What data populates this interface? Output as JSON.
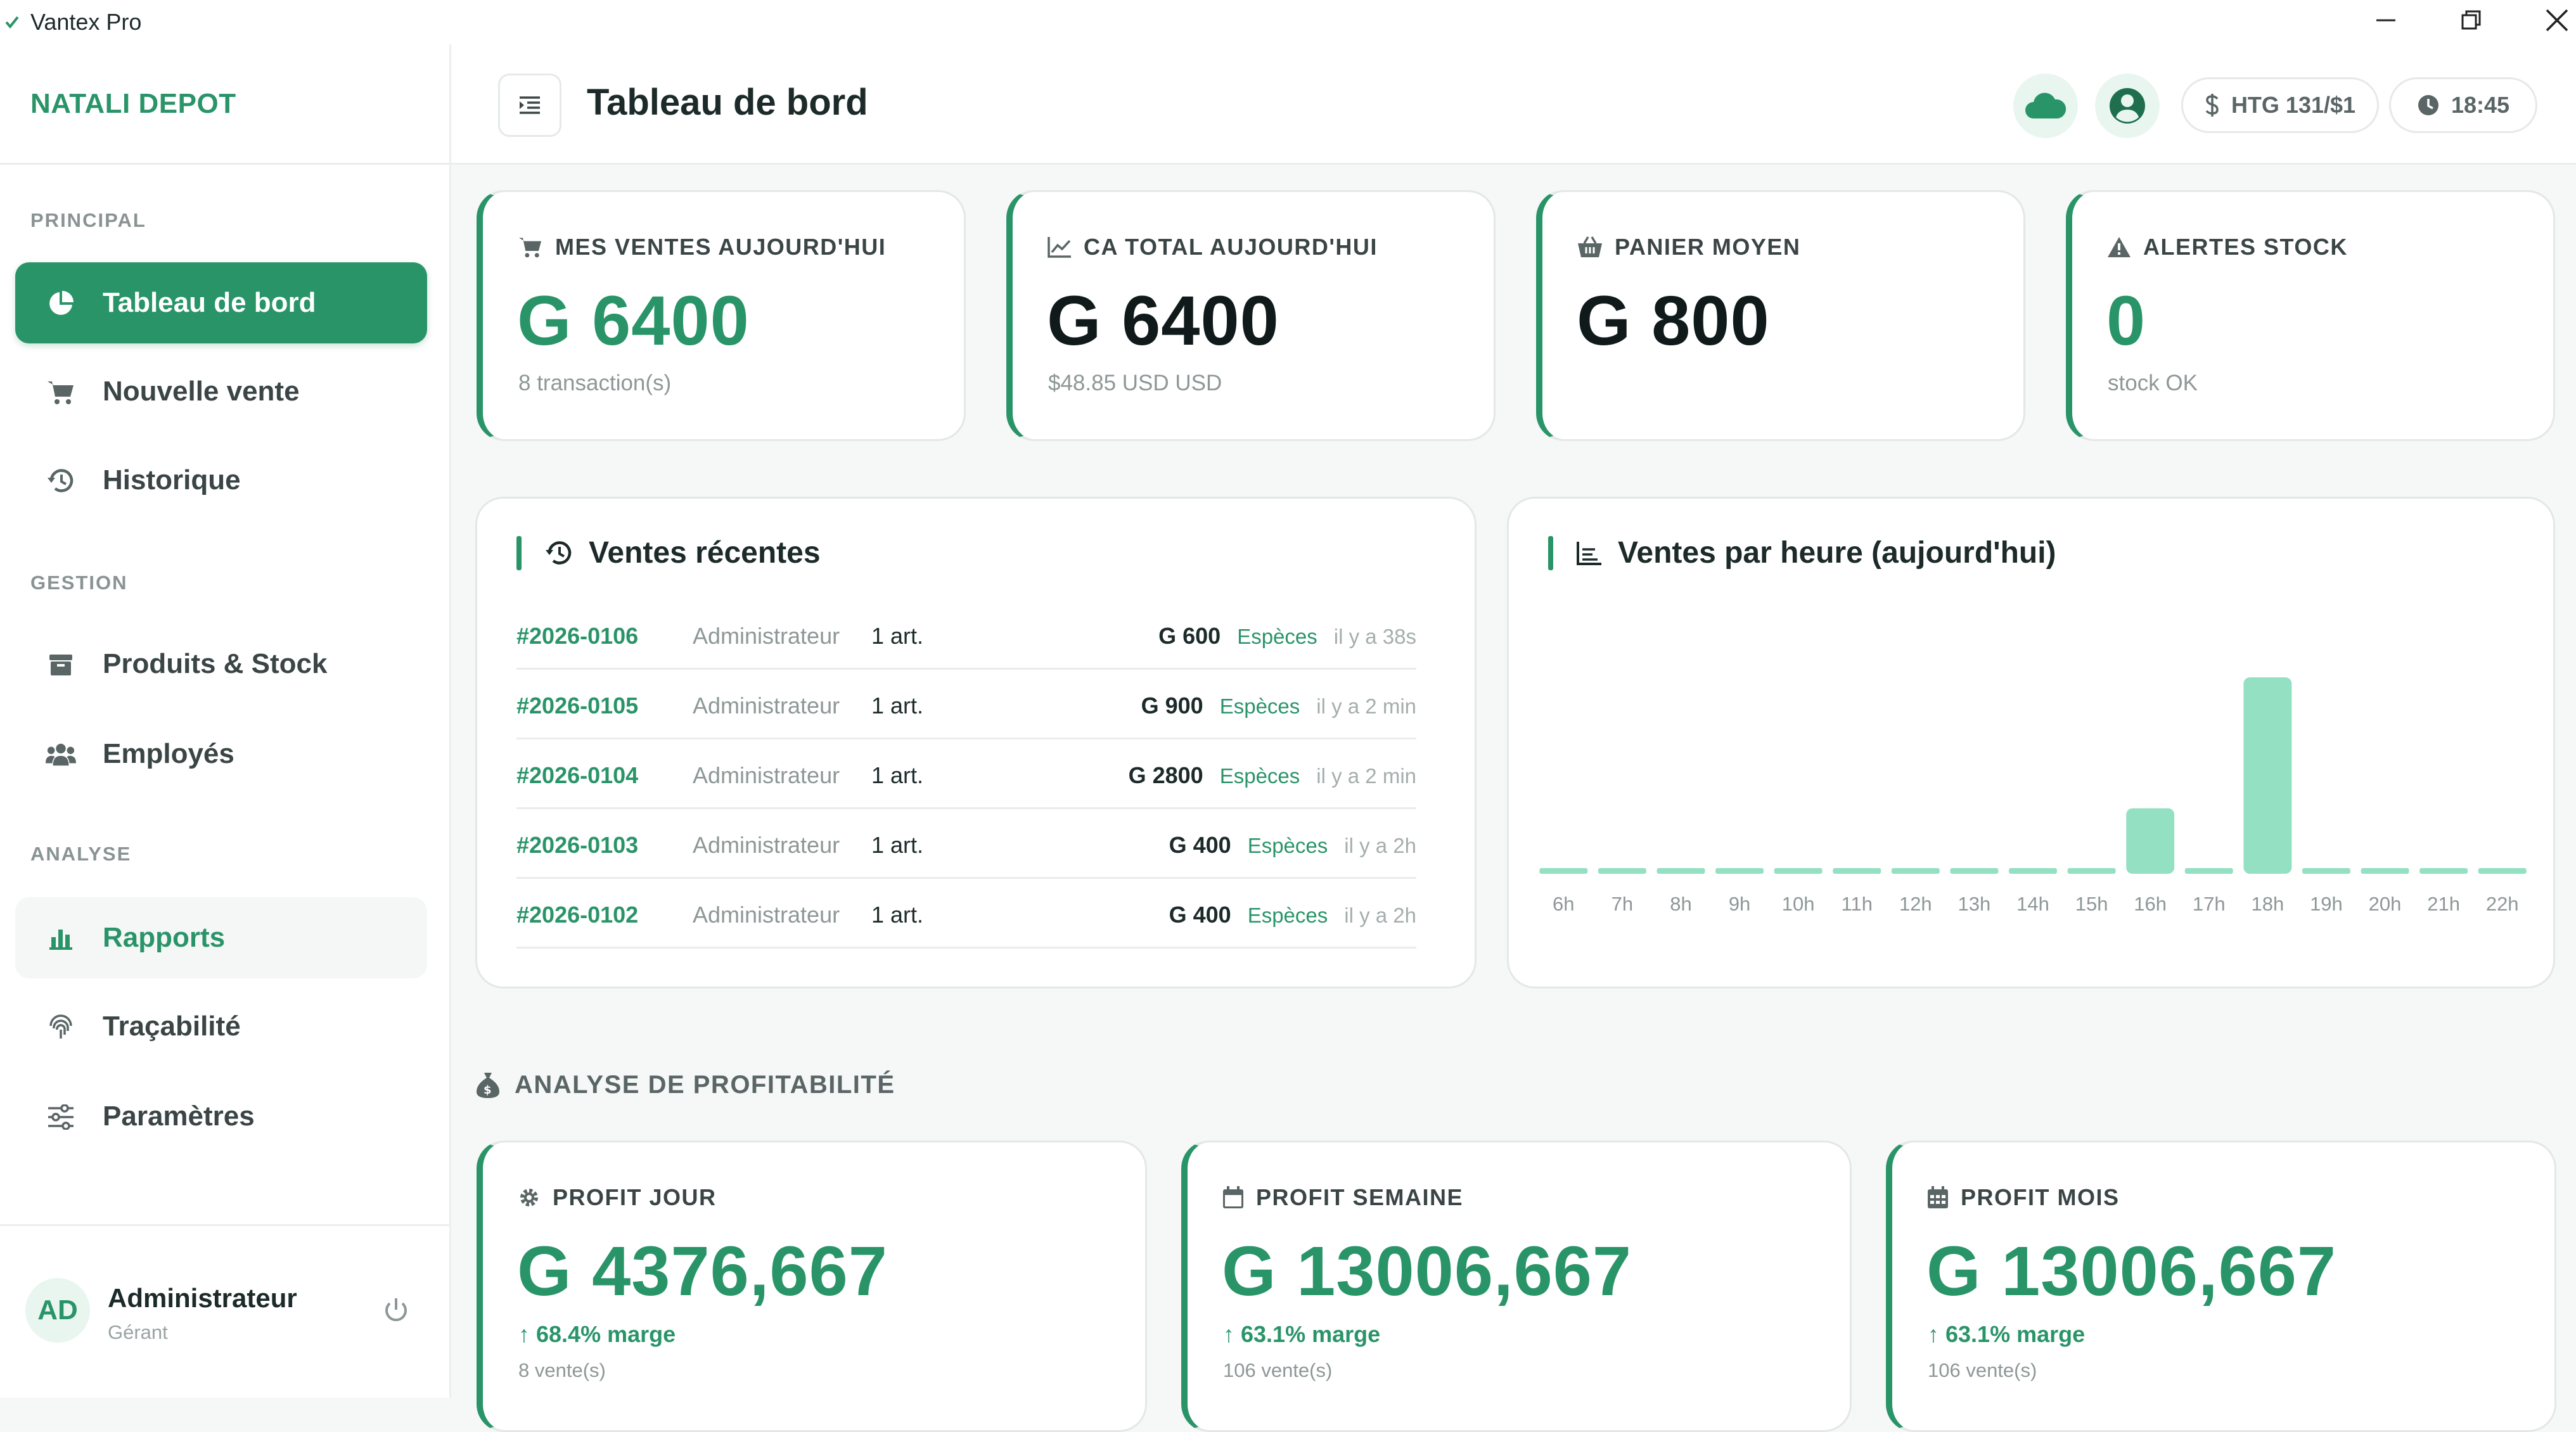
{
  "window": {
    "title": "Vantex Pro",
    "controls": [
      "minimize",
      "restore",
      "close"
    ]
  },
  "sidebar": {
    "brand": "NATALI DEPOT",
    "sections": {
      "principal": "PRINCIPAL",
      "gestion": "GESTION",
      "analyse": "ANALYSE"
    },
    "items": [
      {
        "label": "Tableau de bord",
        "icon": "pie-chart-icon",
        "state": "active"
      },
      {
        "label": "Nouvelle vente",
        "icon": "cart-icon"
      },
      {
        "label": "Historique",
        "icon": "history-icon"
      },
      {
        "label": "Produits & Stock",
        "icon": "box-icon"
      },
      {
        "label": "Employés",
        "icon": "users-icon"
      },
      {
        "label": "Rapports",
        "icon": "bar-chart-icon",
        "state": "highlighted"
      },
      {
        "label": "Traçabilité",
        "icon": "fingerprint-icon"
      },
      {
        "label": "Paramètres",
        "icon": "sliders-icon"
      }
    ],
    "user": {
      "initials": "AD",
      "name": "Administrateur",
      "role": "Gérant"
    }
  },
  "header": {
    "title": "Tableau de bord",
    "exchange_rate": "HTG 131/$1",
    "time": "18:45"
  },
  "stats": [
    {
      "label": "MES VENTES AUJOURD'HUI",
      "value": "G 6400",
      "sub": "8 transaction(s)",
      "icon": "cart-icon"
    },
    {
      "label": "CA TOTAL AUJOURD'HUI",
      "value": "G 6400",
      "sub": "$48.85 USD USD",
      "icon": "line-chart-icon"
    },
    {
      "label": "PANIER MOYEN",
      "value": "G 800",
      "sub": "",
      "icon": "basket-icon"
    },
    {
      "label": "ALERTES STOCK",
      "value": "0",
      "sub": "stock OK",
      "icon": "warning-icon"
    }
  ],
  "recent_sales": {
    "title": "Ventes récentes",
    "rows": [
      {
        "number": "#2026-0106",
        "user": "Administrateur",
        "items": "1 art.",
        "amount": "G 600",
        "payment": "Espèces",
        "ago": "il y a 38s"
      },
      {
        "number": "#2026-0105",
        "user": "Administrateur",
        "items": "1 art.",
        "amount": "G 900",
        "payment": "Espèces",
        "ago": "il y a 2 min"
      },
      {
        "number": "#2026-0104",
        "user": "Administrateur",
        "items": "1 art.",
        "amount": "G 2800",
        "payment": "Espèces",
        "ago": "il y a 2 min"
      },
      {
        "number": "#2026-0103",
        "user": "Administrateur",
        "items": "1 art.",
        "amount": "G 400",
        "payment": "Espèces",
        "ago": "il y a 2h"
      },
      {
        "number": "#2026-0102",
        "user": "Administrateur",
        "items": "1 art.",
        "amount": "G 400",
        "payment": "Espèces",
        "ago": "il y a 2h"
      }
    ]
  },
  "chart_panel": {
    "title": "Ventes par heure (aujourd'hui)"
  },
  "chart_data": {
    "type": "bar",
    "categories": [
      "6h",
      "7h",
      "8h",
      "9h",
      "10h",
      "11h",
      "12h",
      "13h",
      "14h",
      "15h",
      "16h",
      "17h",
      "18h",
      "19h",
      "20h",
      "21h",
      "22h"
    ],
    "values": [
      0,
      0,
      0,
      0,
      0,
      0,
      0,
      0,
      0,
      0,
      1600,
      0,
      4800,
      0,
      0,
      0,
      0
    ],
    "title": "Ventes par heure (aujourd'hui)",
    "xlabel": "",
    "ylabel": "",
    "grid": false,
    "bar_color": "#94e0c2"
  },
  "profitability": {
    "heading": "ANALYSE DE PROFITABILITÉ",
    "cards": [
      {
        "label": "PROFIT JOUR",
        "value": "G 4376,667",
        "margin": "68.4% marge",
        "count": "8 vente(s)",
        "icon": "gear-icon"
      },
      {
        "label": "PROFIT SEMAINE",
        "value": "G 13006,667",
        "margin": "63.1% marge",
        "count": "106 vente(s)",
        "icon": "calendar-icon"
      },
      {
        "label": "PROFIT MOIS",
        "value": "G 13006,667",
        "margin": "63.1% marge",
        "count": "106 vente(s)",
        "icon": "calendar-grid-icon"
      }
    ]
  },
  "colors": {
    "accent": "#2a9469",
    "accent_soft": "#e9f6f0",
    "bar": "#94e0c2"
  }
}
